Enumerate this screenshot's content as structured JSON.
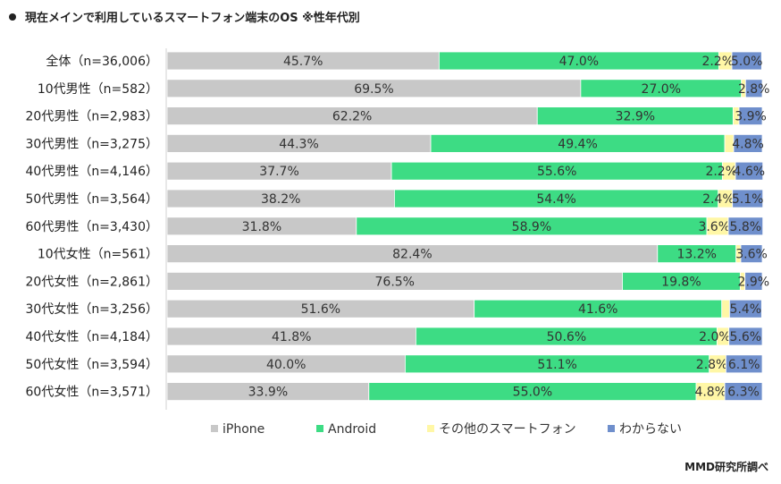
{
  "title": "現在メインで利用しているスマートフォン端末のOS ※性年代別",
  "source": "MMD研究所調べ",
  "colors": {
    "iPhone": "#c8c8c8",
    "Android": "#3ddc84",
    "その他のスマートフォン": "#fff7a6",
    "わからない": "#6f8fcc"
  },
  "chart_data": {
    "type": "bar",
    "orientation": "horizontal",
    "stacked": "100%",
    "categories": [
      "全体（n=36,006）",
      "10代男性（n=582）",
      "20代男性（n=2,983）",
      "30代男性（n=3,275）",
      "40代男性（n=4,146）",
      "50代男性（n=3,564）",
      "60代男性（n=3,430）",
      "10代女性（n=561）",
      "20代女性（n=2,861）",
      "30代女性（n=3,256）",
      "40代女性（n=4,184）",
      "50代女性（n=3,594）",
      "60代女性（n=3,571）"
    ],
    "series": [
      {
        "name": "iPhone",
        "values": [
          45.7,
          69.5,
          62.2,
          44.3,
          37.7,
          38.2,
          31.8,
          82.4,
          76.5,
          51.6,
          41.8,
          40.0,
          33.9
        ],
        "labels": [
          "45.7%",
          "69.5%",
          "62.2%",
          "44.3%",
          "37.7%",
          "38.2%",
          "31.8%",
          "82.4%",
          "76.5%",
          "51.6%",
          "41.8%",
          "40.0%",
          "33.9%"
        ]
      },
      {
        "name": "Android",
        "values": [
          47.0,
          27.0,
          32.9,
          49.4,
          55.6,
          54.4,
          58.9,
          13.2,
          19.8,
          41.6,
          50.6,
          51.1,
          55.0
        ],
        "labels": [
          "47.0%",
          "27.0%",
          "32.9%",
          "49.4%",
          "55.6%",
          "54.4%",
          "58.9%",
          "13.2%",
          "19.8%",
          "41.6%",
          "50.6%",
          "51.1%",
          "55.0%"
        ]
      },
      {
        "name": "その他のスマートフォン",
        "values": [
          2.2,
          0.7,
          1.0,
          1.5,
          2.2,
          2.4,
          3.6,
          0.8,
          0.8,
          1.3,
          2.0,
          2.8,
          4.8
        ],
        "labels": [
          "2.2%",
          "",
          "",
          "",
          "2.2%",
          "2.4%",
          "3.6%",
          "",
          "",
          "",
          "2.0%",
          "2.8%",
          "4.8%"
        ]
      },
      {
        "name": "わからない",
        "values": [
          5.0,
          2.8,
          3.9,
          4.8,
          4.6,
          5.1,
          5.8,
          3.6,
          2.9,
          5.4,
          5.6,
          6.1,
          6.3
        ],
        "labels": [
          "5.0%",
          "2.8%",
          "3.9%",
          "4.8%",
          "4.6%",
          "5.1%",
          "5.8%",
          "3.6%",
          "2.9%",
          "5.4%",
          "5.6%",
          "6.1%",
          "6.3%"
        ]
      }
    ],
    "xlim": [
      0,
      100
    ],
    "legend_position": "bottom",
    "grid": false
  }
}
